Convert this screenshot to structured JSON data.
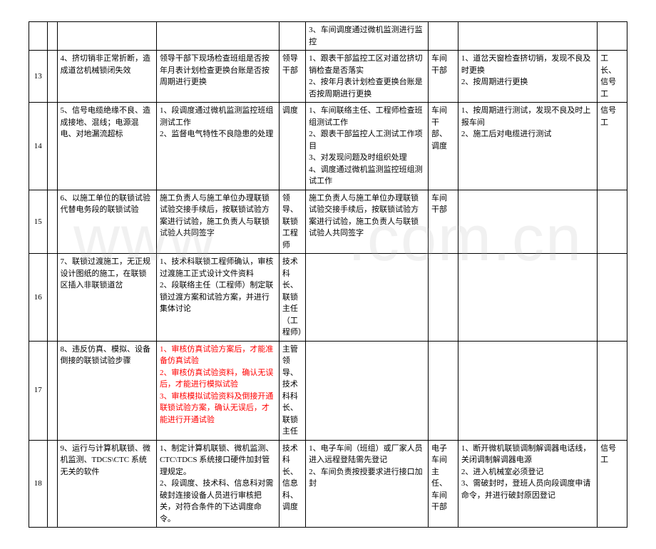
{
  "watermark": "www　　.com.cn",
  "rows": [
    {
      "num": "",
      "a": "",
      "b": "",
      "c": "",
      "d": "3、车间调度通过微机监测进行监控",
      "e": "",
      "f": "",
      "g": ""
    },
    {
      "num": "13",
      "a": "4、挤切销非正常折断，造成道岔机械锁闭失效",
      "b": "领导干部下现场检查班组是否按年月表计划检查更换台账是否按周期进行更换",
      "c": "领导干部",
      "d": "1、跟表干部监控工区对道岔挤切销检查是否落实\n2、按年月表计划检查更换台账是否按周期进行更换",
      "e": "车间干部",
      "f": "1、道岔天窗检查挤切销，发现不良及时更换\n2、按周期进行更换",
      "g": "工长、信号工"
    },
    {
      "num": "14",
      "a": "5、信号电缆绝缘不良、造成接地、混线；电源混电、对地漏流超标",
      "b": "1、段调度通过微机监测监控班组测试工作\n2、监督电气特性不良隐患的处理",
      "c": "调度",
      "d": "1、车间联络主任、工程师检查班组测试工作\n2、跟表干部监控人工测试工作项目\n3、对发现问题及时组织处理\n4、调度通过微机监测监控班组测试工作",
      "e": "车间干部、调度",
      "f": "1、按周期进行测试，发现不良及时上报车间\n2、施工后对电缆进行测试",
      "g": "信号工"
    },
    {
      "num": "15",
      "a": "6、以施工单位的联锁试验代替电务段的联锁试验",
      "b": "施工负责人与施工单位办理联锁试验交接手续后，按联锁试验方案进行试验，施工负责人与联锁试验人共同签字",
      "c": "领导、联锁工程师",
      "d": "施工负责人与施工单位办理联锁试验交接手续后，按联锁试验方案进行试验，施工负责人与联锁试验人共同签字",
      "e": "车间干部",
      "f": "",
      "g": ""
    },
    {
      "num": "16",
      "a": "7、联锁过渡施工，无正规设计图纸的施工，在联锁区插入非联锁道岔",
      "b": "1、技术科联锁工程师确认，审核过渡施工正式设计文件资料\n2、段联络主任（工程师）制定联锁过渡方案和试验方案，并进行集体讨论",
      "c": "技术科长、联锁主任（工程师）",
      "d": "",
      "e": "",
      "f": "",
      "g": ""
    },
    {
      "num": "17",
      "a": "8、违反仿真、模拟、设备倒接的联锁试验步骤",
      "b_red": "1、审核仿真试验方案后，才能准备仿真试验\n2、审核仿真试验资料，确认无误后，才能进行模拟试验\n3、审核模拟试验资料及倒接开通联锁试验方案，确认无误后，才能进行开通试验",
      "c": "主管领导、技术科科长、联锁主任",
      "d": "",
      "e": "",
      "f": "",
      "g": ""
    },
    {
      "num": "18",
      "a": "9、运行与计算机联锁、微机监测、TDCS\\CTC 系统无关的软件",
      "b": "1、制定计算机联锁、微机监测、CTC\\TDCS 系统接口硬件加封管理规定。\n2、段调度、技术科、信息科对需破封连接设备人员进行审核把关，对符合条件的下达调度命令。",
      "c": "技术科长、信息科、调度",
      "d": "1、电子车间（班组）或厂家人员进入远程登陆需先登记\n2、车间负责按授要求进行接口加封",
      "e": "电子车间主任、车间干部",
      "f": "1、断开微机联锁调制解调器电话线，关闭调制解调器电源\n2、进入机械室必须登记\n3、需破封时，登班人员向段调度申请命令，并进行破封原因登记",
      "g": "信号工"
    }
  ]
}
